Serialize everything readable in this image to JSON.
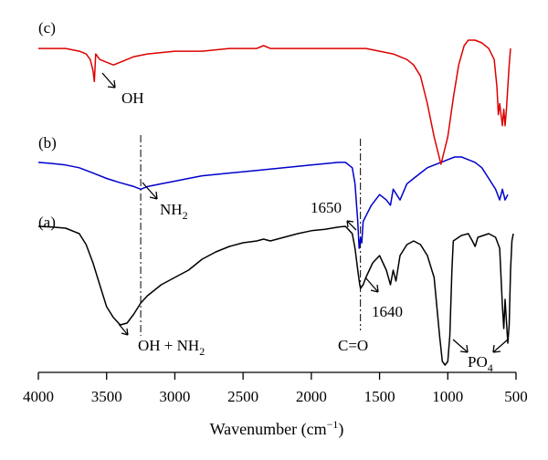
{
  "chart_data": {
    "type": "line",
    "title": "",
    "xlabel": "Wavenumber (cm",
    "xlabel_sup": "−1",
    "xlabel_close": ")",
    "ylabel": "",
    "xlim": [
      4000,
      500
    ],
    "x_reversed": true,
    "x_ticks": [
      4000,
      3500,
      3000,
      2500,
      2000,
      1500,
      1000,
      500
    ],
    "y_axis_shown": false,
    "grid": false,
    "series": [
      {
        "label": "(a)",
        "color": "#000000",
        "points": [
          [
            4000,
            92
          ],
          [
            3900,
            91.8
          ],
          [
            3800,
            91.5
          ],
          [
            3700,
            90
          ],
          [
            3650,
            87
          ],
          [
            3600,
            82
          ],
          [
            3550,
            76
          ],
          [
            3500,
            70
          ],
          [
            3450,
            67
          ],
          [
            3400,
            65
          ],
          [
            3350,
            65.5
          ],
          [
            3300,
            68
          ],
          [
            3250,
            71
          ],
          [
            3200,
            73
          ],
          [
            3100,
            76
          ],
          [
            3000,
            78
          ],
          [
            2900,
            80
          ],
          [
            2800,
            83
          ],
          [
            2700,
            85
          ],
          [
            2600,
            86.5
          ],
          [
            2500,
            87.5
          ],
          [
            2400,
            88
          ],
          [
            2350,
            88.5
          ],
          [
            2300,
            88
          ],
          [
            2200,
            89
          ],
          [
            2100,
            90
          ],
          [
            2000,
            90.8
          ],
          [
            1900,
            91.2
          ],
          [
            1800,
            91.8
          ],
          [
            1750,
            92
          ],
          [
            1700,
            90
          ],
          [
            1680,
            86
          ],
          [
            1660,
            80
          ],
          [
            1645,
            76
          ],
          [
            1640,
            75
          ],
          [
            1620,
            76
          ],
          [
            1600,
            78
          ],
          [
            1550,
            82
          ],
          [
            1500,
            84
          ],
          [
            1450,
            80
          ],
          [
            1420,
            76
          ],
          [
            1400,
            80
          ],
          [
            1380,
            77
          ],
          [
            1350,
            84
          ],
          [
            1300,
            87
          ],
          [
            1250,
            88
          ],
          [
            1200,
            87
          ],
          [
            1150,
            84
          ],
          [
            1100,
            78
          ],
          [
            1060,
            62
          ],
          [
            1040,
            55
          ],
          [
            1020,
            54
          ],
          [
            1000,
            55
          ],
          [
            985,
            62
          ],
          [
            970,
            80
          ],
          [
            960,
            88
          ],
          [
            900,
            89.5
          ],
          [
            850,
            90
          ],
          [
            820,
            88
          ],
          [
            800,
            86.5
          ],
          [
            780,
            89
          ],
          [
            700,
            90
          ],
          [
            650,
            89
          ],
          [
            620,
            86
          ],
          [
            600,
            70
          ],
          [
            590,
            64
          ],
          [
            580,
            72
          ],
          [
            570,
            66
          ],
          [
            560,
            60
          ],
          [
            550,
            65
          ],
          [
            540,
            80
          ],
          [
            530,
            88
          ],
          [
            520,
            90
          ]
        ]
      },
      {
        "label": "(b)",
        "color": "#0000cc",
        "points": [
          [
            4000,
            94
          ],
          [
            3900,
            93.8
          ],
          [
            3800,
            93.5
          ],
          [
            3700,
            93
          ],
          [
            3600,
            92
          ],
          [
            3500,
            91
          ],
          [
            3400,
            90.2
          ],
          [
            3300,
            89.5
          ],
          [
            3250,
            89
          ],
          [
            3200,
            89.5
          ],
          [
            3100,
            90
          ],
          [
            3000,
            90.5
          ],
          [
            2900,
            91
          ],
          [
            2800,
            91.5
          ],
          [
            2600,
            92
          ],
          [
            2400,
            92.5
          ],
          [
            2200,
            93
          ],
          [
            2000,
            93.5
          ],
          [
            1800,
            94
          ],
          [
            1750,
            94
          ],
          [
            1700,
            93
          ],
          [
            1680,
            90
          ],
          [
            1660,
            83
          ],
          [
            1650,
            78
          ],
          [
            1640,
            80
          ],
          [
            1630,
            79
          ],
          [
            1620,
            83
          ],
          [
            1600,
            84
          ],
          [
            1560,
            86
          ],
          [
            1500,
            88
          ],
          [
            1450,
            87
          ],
          [
            1420,
            86
          ],
          [
            1400,
            89
          ],
          [
            1350,
            87
          ],
          [
            1300,
            90
          ],
          [
            1250,
            91
          ],
          [
            1200,
            92
          ],
          [
            1150,
            93
          ],
          [
            1100,
            93.5
          ],
          [
            1050,
            94
          ],
          [
            1000,
            94.5
          ],
          [
            950,
            95
          ],
          [
            900,
            95
          ],
          [
            850,
            94.5
          ],
          [
            800,
            94
          ],
          [
            750,
            93
          ],
          [
            700,
            91
          ],
          [
            650,
            89
          ],
          [
            620,
            87
          ],
          [
            600,
            89
          ],
          [
            580,
            87
          ],
          [
            560,
            88
          ]
        ]
      },
      {
        "label": "(c)",
        "color": "#dd0000",
        "points": [
          [
            4000,
            96
          ],
          [
            3900,
            96
          ],
          [
            3800,
            96
          ],
          [
            3700,
            95.5
          ],
          [
            3650,
            95
          ],
          [
            3620,
            94
          ],
          [
            3600,
            92
          ],
          [
            3590,
            90
          ],
          [
            3580,
            95
          ],
          [
            3550,
            94
          ],
          [
            3500,
            93.5
          ],
          [
            3450,
            93
          ],
          [
            3400,
            93.5
          ],
          [
            3300,
            94.5
          ],
          [
            3200,
            95
          ],
          [
            3000,
            95.5
          ],
          [
            2800,
            95.5
          ],
          [
            2600,
            96
          ],
          [
            2400,
            96
          ],
          [
            2350,
            96.5
          ],
          [
            2300,
            96
          ],
          [
            2000,
            96
          ],
          [
            1800,
            96
          ],
          [
            1600,
            96
          ],
          [
            1500,
            95.5
          ],
          [
            1400,
            95
          ],
          [
            1300,
            94
          ],
          [
            1250,
            93
          ],
          [
            1200,
            91
          ],
          [
            1150,
            86
          ],
          [
            1100,
            80
          ],
          [
            1060,
            76
          ],
          [
            1050,
            75
          ],
          [
            1040,
            76
          ],
          [
            1000,
            80
          ],
          [
            960,
            87
          ],
          [
            920,
            93
          ],
          [
            880,
            96.5
          ],
          [
            850,
            97.5
          ],
          [
            800,
            97.5
          ],
          [
            750,
            97
          ],
          [
            700,
            96
          ],
          [
            660,
            94
          ],
          [
            640,
            89
          ],
          [
            630,
            84
          ],
          [
            620,
            86
          ],
          [
            610,
            84
          ],
          [
            600,
            82
          ],
          [
            590,
            85
          ],
          [
            580,
            82
          ],
          [
            570,
            85
          ],
          [
            560,
            89
          ],
          [
            550,
            93
          ],
          [
            540,
            96
          ]
        ]
      }
    ],
    "panel_labels": [
      "(a)",
      "(b)",
      "(c)"
    ],
    "annotations": {
      "oh_c": "OH",
      "nh2_b": "NH",
      "nh2_b_sub": "2",
      "n1650": "1650",
      "n1640": "1640",
      "oh_nh2_a": "OH + NH",
      "oh_nh2_a_sub": "2",
      "co": "C=O",
      "po4": "PO",
      "po4_sub": "4"
    },
    "dashdot_lines_x": [
      3250,
      1640
    ]
  }
}
